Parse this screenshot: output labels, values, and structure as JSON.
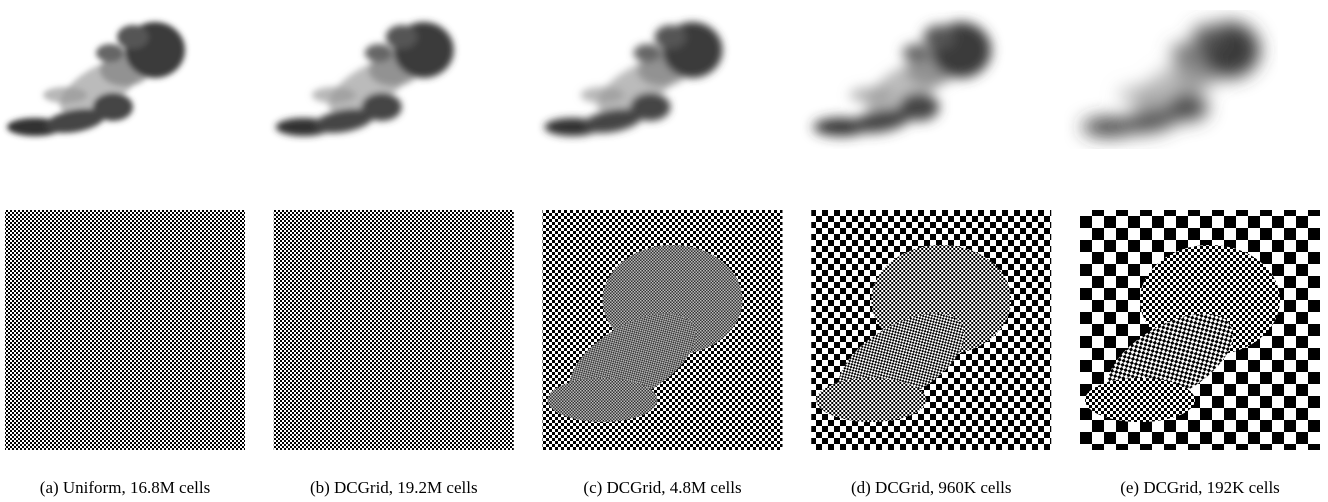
{
  "captions": [
    "(a) Uniform, 16.8M cells",
    "(b) DCGrid, 19.2M cells",
    "(c) DCGrid, 4.8M cells",
    "(d) DCGrid, 960K cells",
    "(e) DCGrid, 192K cells"
  ]
}
